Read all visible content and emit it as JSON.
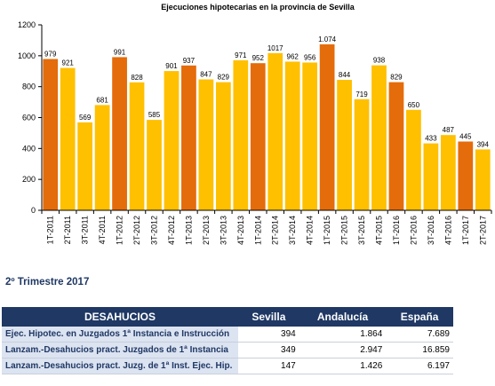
{
  "chart_data": {
    "type": "bar",
    "title": "Ejecuciones hipotecarias  en la provincia de Sevilla",
    "categories": [
      "1T-2011",
      "2T-2011",
      "3T-2011",
      "4T-2011",
      "1T-2012",
      "2T-2012",
      "3T-2012",
      "4T-2012",
      "1T-2013",
      "2T-2013",
      "3T-2013",
      "4T-2013",
      "1T-2014",
      "2T-2014",
      "3T-2014",
      "4T-2014",
      "1T-2015",
      "2T-2015",
      "3T-2015",
      "4T-2015",
      "1T-2016",
      "2T-2016",
      "3T-2016",
      "4T-2016",
      "1T-2017",
      "2T-2017"
    ],
    "values": [
      979,
      921,
      569,
      681,
      991,
      828,
      585,
      901,
      937,
      847,
      829,
      971,
      952,
      1017,
      962,
      956,
      1074,
      844,
      719,
      938,
      829,
      650,
      433,
      487,
      445,
      394
    ],
    "value_labels": [
      "979",
      "921",
      "569",
      "681",
      "991",
      "828",
      "585",
      "901",
      "937",
      "847",
      "829",
      "971",
      "952",
      "1017",
      "962",
      "956",
      "1.074",
      "844",
      "719",
      "938",
      "829",
      "650",
      "433",
      "487",
      "445",
      "394"
    ],
    "ylim": [
      0,
      1200
    ],
    "yticks": [
      0,
      200,
      400,
      600,
      800,
      1000,
      1200
    ],
    "grid": false,
    "colors": {
      "first_quarter": "#e46c0a",
      "other_quarters": "#ffc000"
    },
    "xlabel": "",
    "ylabel": ""
  },
  "section_title": "2º Trimestre 2017",
  "table": {
    "headers": [
      "DESAHUCIOS",
      "Sevilla",
      "Andalucía",
      "España"
    ],
    "rows": [
      {
        "label": "Ejec. Hipotec. en Juzgados 1ª Instancia e Instrucción",
        "sevilla": "394",
        "andalucia": "1.864",
        "espana": "7.689"
      },
      {
        "label": "Lanzam.-Desahucios pract. Juzgados de 1ª Instancia",
        "sevilla": "349",
        "andalucia": "2.947",
        "espana": "16.859"
      },
      {
        "label": "Lanzam.-Desahucios pract. Juzg. de 1ª Inst. Ejec. Hip.",
        "sevilla": "147",
        "andalucia": "1.426",
        "espana": "6.197"
      }
    ]
  }
}
